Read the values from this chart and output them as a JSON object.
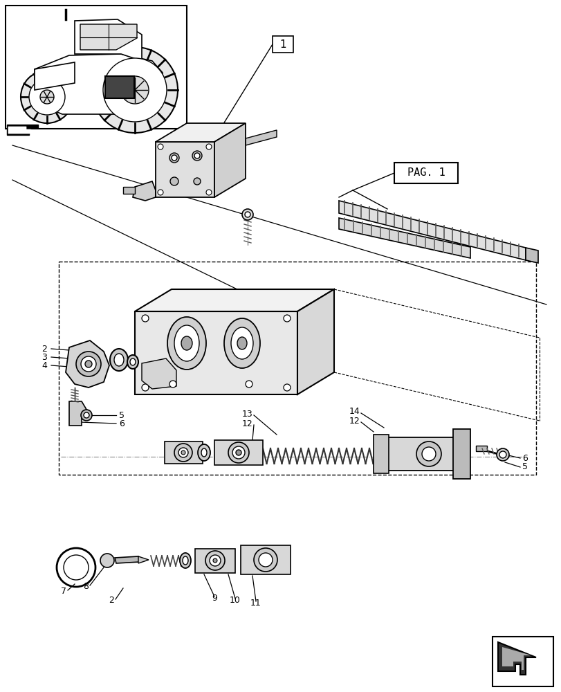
{
  "bg_color": "#ffffff",
  "lc": "#000000",
  "gray1": "#cccccc",
  "gray2": "#e8e8e8",
  "gray3": "#aaaaaa",
  "pag_label": "PAG. 1",
  "figsize": [
    8.12,
    10.0
  ],
  "dpi": 100
}
